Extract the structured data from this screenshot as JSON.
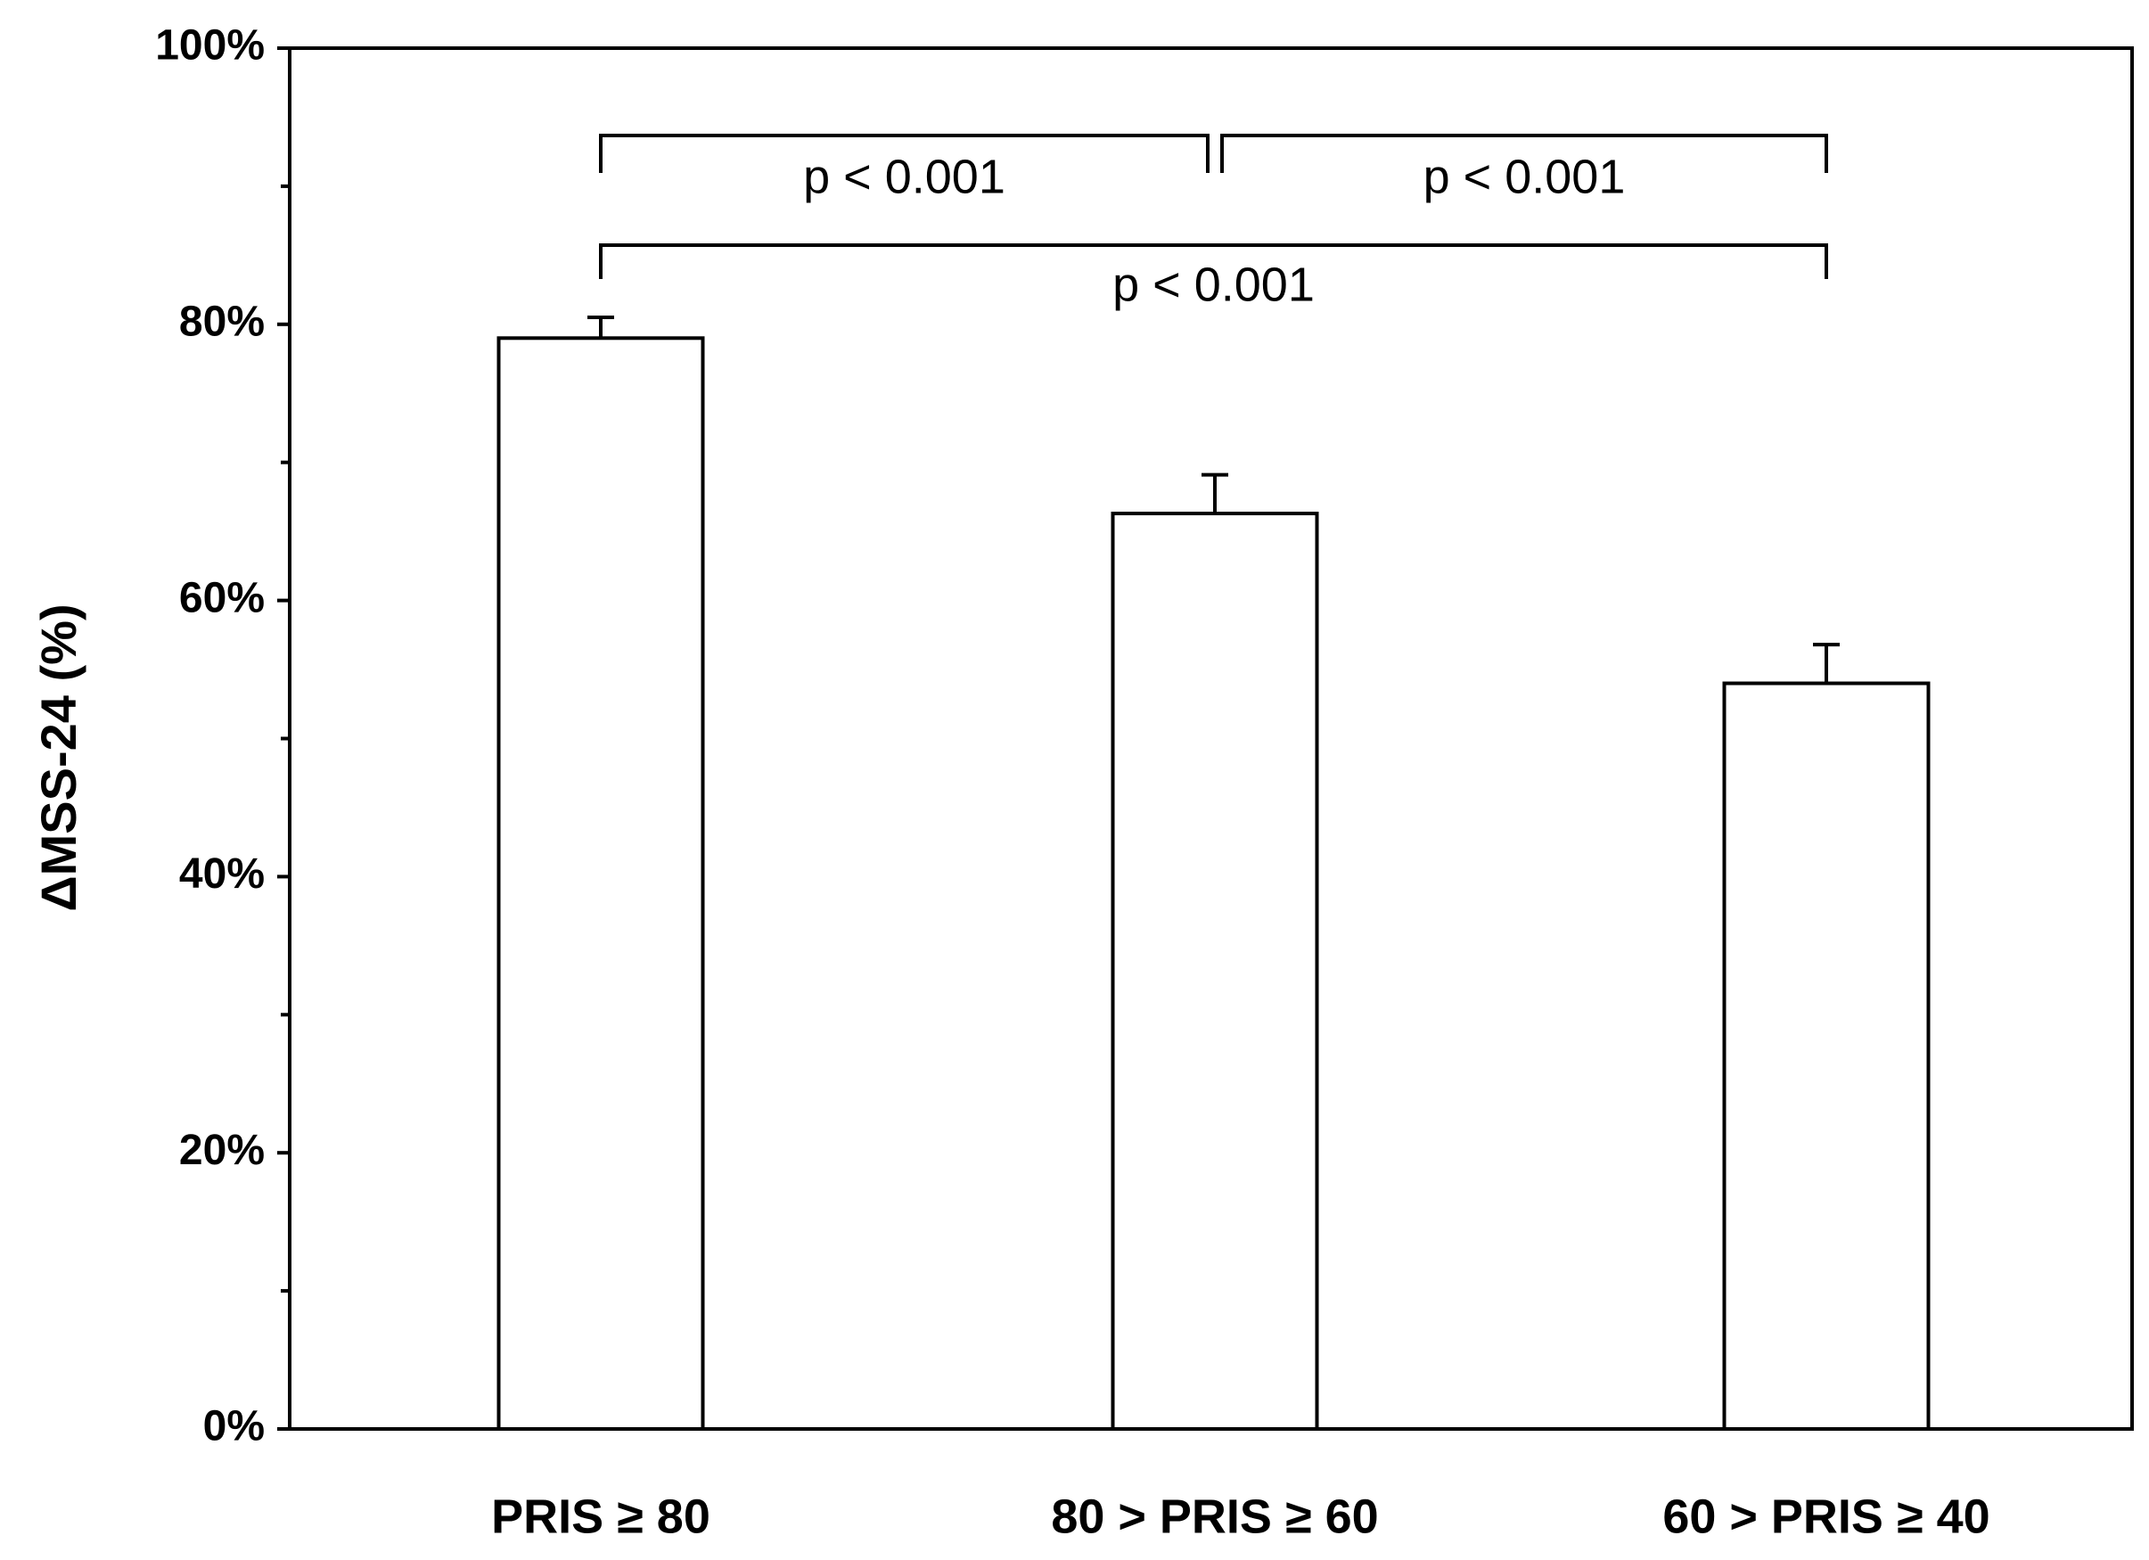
{
  "chart_data": {
    "type": "bar",
    "y_label": "ΔMSS-24 (%)",
    "categories": [
      "PRIS ≥ 80",
      "80 > PRIS ≥ 60",
      "60 > PRIS ≥ 40"
    ],
    "values": [
      79,
      66.3,
      54
    ],
    "errors": [
      1.5,
      2.8,
      2.8
    ],
    "color": "#ffffff",
    "ylim": [
      0,
      100
    ],
    "yticks": [
      {
        "value": 0,
        "label": "0%"
      },
      {
        "value": 20,
        "label": "20%"
      },
      {
        "value": 40,
        "label": "40%"
      },
      {
        "value": 60,
        "label": "60%"
      },
      {
        "value": 80,
        "label": "80%"
      },
      {
        "value": 100,
        "label": "100%"
      }
    ],
    "minor_yticks": [
      10,
      30,
      50,
      70,
      90
    ],
    "comparisons": [
      {
        "from": 0,
        "to": 1,
        "label": "p < 0.001"
      },
      {
        "from": 1,
        "to": 2,
        "label": "p < 0.001"
      },
      {
        "from": 0,
        "to": 2,
        "label": "p < 0.001"
      }
    ]
  }
}
